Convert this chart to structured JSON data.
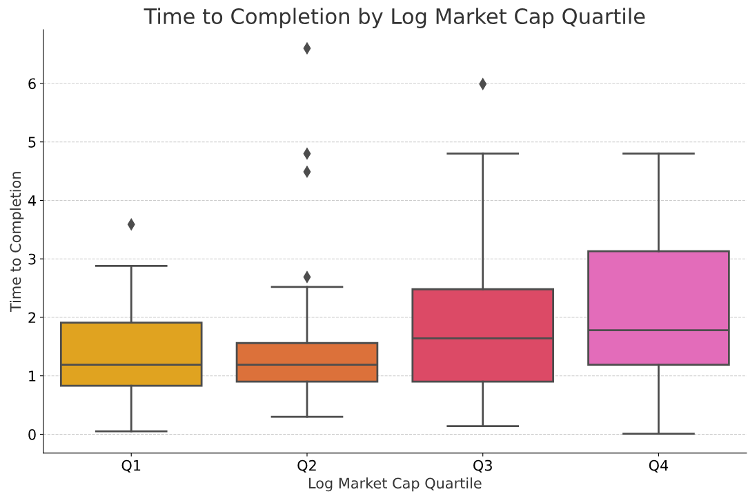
{
  "chart_data": {
    "type": "box",
    "title": "Time to Completion by Log Market Cap Quartile",
    "xlabel": "Log Market Cap Quartile",
    "ylabel": "Time to Completion",
    "categories": [
      "Q1",
      "Q2",
      "Q3",
      "Q4"
    ],
    "colors": [
      "#e0a320",
      "#dc713a",
      "#dc4a66",
      "#e36cba"
    ],
    "boxes": [
      {
        "low": 0.05,
        "q1": 0.83,
        "median": 1.19,
        "q3": 1.91,
        "high": 2.88,
        "outliers": [
          3.59
        ]
      },
      {
        "low": 0.3,
        "q1": 0.9,
        "median": 1.19,
        "q3": 1.56,
        "high": 2.52,
        "outliers": [
          6.6,
          4.8,
          4.49,
          2.69
        ]
      },
      {
        "low": 0.14,
        "q1": 0.9,
        "median": 1.64,
        "q3": 2.48,
        "high": 4.8,
        "outliers": [
          5.99
        ]
      },
      {
        "low": 0.01,
        "q1": 1.19,
        "median": 1.78,
        "q3": 3.13,
        "high": 4.8
      }
    ],
    "ylim": [
      -0.32,
      6.92
    ],
    "yticks": [
      0,
      1,
      2,
      3,
      4,
      5,
      6
    ],
    "grid": "y",
    "marker": "diamond"
  }
}
